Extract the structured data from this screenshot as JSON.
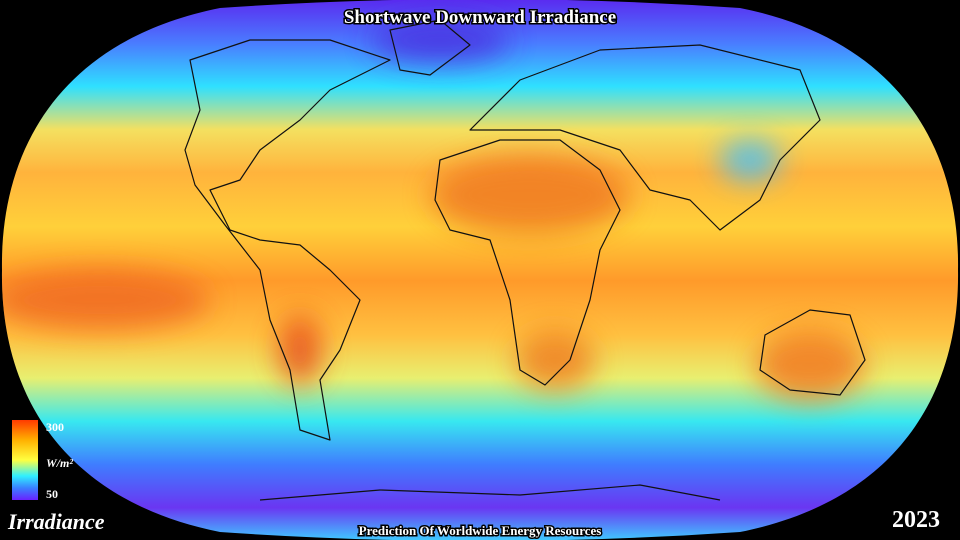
{
  "header": {
    "title": "Shortwave Downward Irradiance"
  },
  "colorbar": {
    "max": 300,
    "unit": "W/m²",
    "min": 50
  },
  "footer": {
    "label": "Irradiance",
    "source": "Prediction Of Worldwide Energy Resources",
    "year": "2023"
  }
}
